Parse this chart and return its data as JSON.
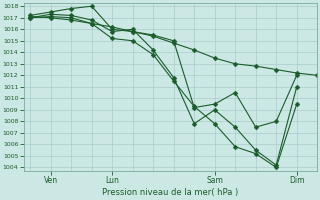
{
  "xlabel": "Pression niveau de la mer( hPa )",
  "bg_color": "#cce8e4",
  "grid_color": "#aacccc",
  "line_color": "#1a5c2a",
  "ylim": [
    1004,
    1018
  ],
  "ytick_step": 1,
  "xlim": [
    0,
    14
  ],
  "xtick_positions": [
    1,
    4,
    9,
    13
  ],
  "xtick_labels": [
    "Ven",
    "Lun",
    "Sam",
    "Dim"
  ],
  "line1_x": [
    0,
    1,
    2,
    3,
    4,
    5,
    6,
    7,
    8,
    9,
    10,
    11,
    12,
    13,
    14
  ],
  "line1_y": [
    1017.1,
    1017.0,
    1016.8,
    1016.5,
    1016.2,
    1015.8,
    1015.4,
    1014.8,
    1014.2,
    1013.5,
    1013.0,
    1012.8,
    1012.5,
    1012.2,
    1012.0
  ],
  "line2_x": [
    0,
    1,
    2,
    3,
    4,
    5,
    6,
    7,
    8,
    9,
    10,
    11,
    12,
    13
  ],
  "line2_y": [
    1017.2,
    1017.5,
    1017.8,
    1018.0,
    1016.0,
    1015.8,
    1015.5,
    1015.0,
    1009.2,
    1009.5,
    1010.5,
    1007.5,
    1008.0,
    1012.0
  ],
  "line3_x": [
    0,
    1,
    2,
    3,
    4,
    5,
    6,
    7,
    8,
    9,
    10,
    11,
    12,
    13
  ],
  "line3_y": [
    1017.0,
    1017.3,
    1017.2,
    1016.8,
    1015.8,
    1016.0,
    1014.2,
    1011.8,
    1007.8,
    1009.0,
    1007.5,
    1005.5,
    1004.2,
    1011.0
  ],
  "line4_x": [
    0,
    1,
    2,
    3,
    4,
    5,
    6,
    7,
    8,
    9,
    10,
    11,
    12,
    13
  ],
  "line4_y": [
    1017.0,
    1017.1,
    1017.0,
    1016.5,
    1015.2,
    1015.0,
    1013.8,
    1011.5,
    1009.3,
    1007.8,
    1005.8,
    1005.2,
    1004.0,
    1009.5
  ]
}
